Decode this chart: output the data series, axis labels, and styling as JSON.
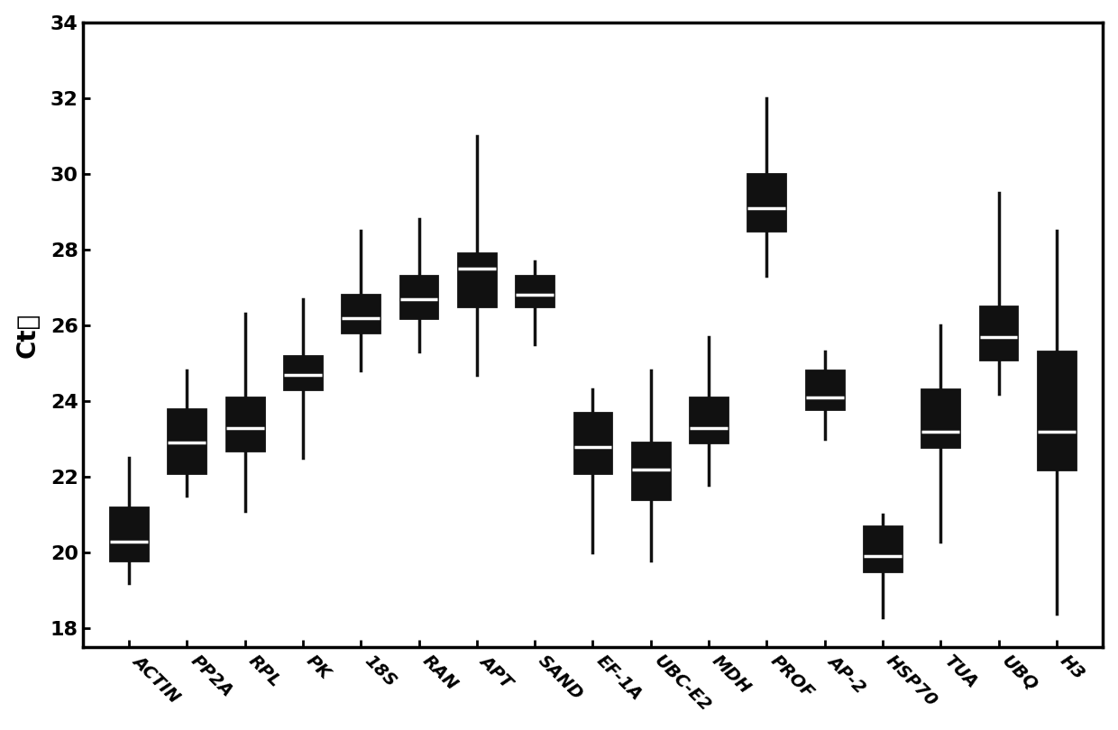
{
  "categories": [
    "ACTIN",
    "PP2A",
    "RPL",
    "PK",
    "18S",
    "RAN",
    "APT",
    "SAND",
    "EF-1A",
    "UBC-E2",
    "MDH",
    "PROF",
    "AP-2",
    "HSP70",
    "TUA",
    "UBQ",
    "H3"
  ],
  "boxes": [
    {
      "whislo": 19.2,
      "q1": 19.8,
      "median": 20.3,
      "q3": 21.2,
      "whishi": 22.5
    },
    {
      "whislo": 21.5,
      "q1": 22.1,
      "median": 22.9,
      "q3": 23.8,
      "whishi": 24.8
    },
    {
      "whislo": 21.1,
      "q1": 22.7,
      "median": 23.3,
      "q3": 24.1,
      "whishi": 26.3
    },
    {
      "whislo": 22.5,
      "q1": 24.3,
      "median": 24.7,
      "q3": 25.2,
      "whishi": 26.7
    },
    {
      "whislo": 24.8,
      "q1": 25.8,
      "median": 26.2,
      "q3": 26.8,
      "whishi": 28.5
    },
    {
      "whislo": 25.3,
      "q1": 26.2,
      "median": 26.7,
      "q3": 27.3,
      "whishi": 28.8
    },
    {
      "whislo": 24.7,
      "q1": 26.5,
      "median": 27.5,
      "q3": 27.9,
      "whishi": 31.0
    },
    {
      "whislo": 25.5,
      "q1": 26.5,
      "median": 26.8,
      "q3": 27.3,
      "whishi": 27.7
    },
    {
      "whislo": 20.0,
      "q1": 22.1,
      "median": 22.8,
      "q3": 23.7,
      "whishi": 24.3
    },
    {
      "whislo": 19.8,
      "q1": 21.4,
      "median": 22.2,
      "q3": 22.9,
      "whishi": 24.8
    },
    {
      "whislo": 21.8,
      "q1": 22.9,
      "median": 23.3,
      "q3": 24.1,
      "whishi": 25.7
    },
    {
      "whislo": 27.3,
      "q1": 28.5,
      "median": 29.1,
      "q3": 30.0,
      "whishi": 32.0
    },
    {
      "whislo": 23.0,
      "q1": 23.8,
      "median": 24.1,
      "q3": 24.8,
      "whishi": 25.3
    },
    {
      "whislo": 18.3,
      "q1": 19.5,
      "median": 19.9,
      "q3": 20.7,
      "whishi": 21.0
    },
    {
      "whislo": 20.3,
      "q1": 22.8,
      "median": 23.2,
      "q3": 24.3,
      "whishi": 26.0
    },
    {
      "whislo": 24.2,
      "q1": 25.1,
      "median": 25.7,
      "q3": 26.5,
      "whishi": 29.5
    },
    {
      "whislo": 18.4,
      "q1": 22.2,
      "median": 23.2,
      "q3": 25.3,
      "whishi": 28.5
    }
  ],
  "ylabel": "Ct值",
  "ylim": [
    17.5,
    34
  ],
  "yticks": [
    18,
    20,
    22,
    24,
    26,
    28,
    30,
    32,
    34
  ],
  "box_color": "#111111",
  "median_color": "#ffffff",
  "whisker_color": "#111111",
  "background_color": "#ffffff",
  "ylabel_fontsize": 20,
  "tick_fontsize": 14,
  "xlabel_rotation": -45
}
